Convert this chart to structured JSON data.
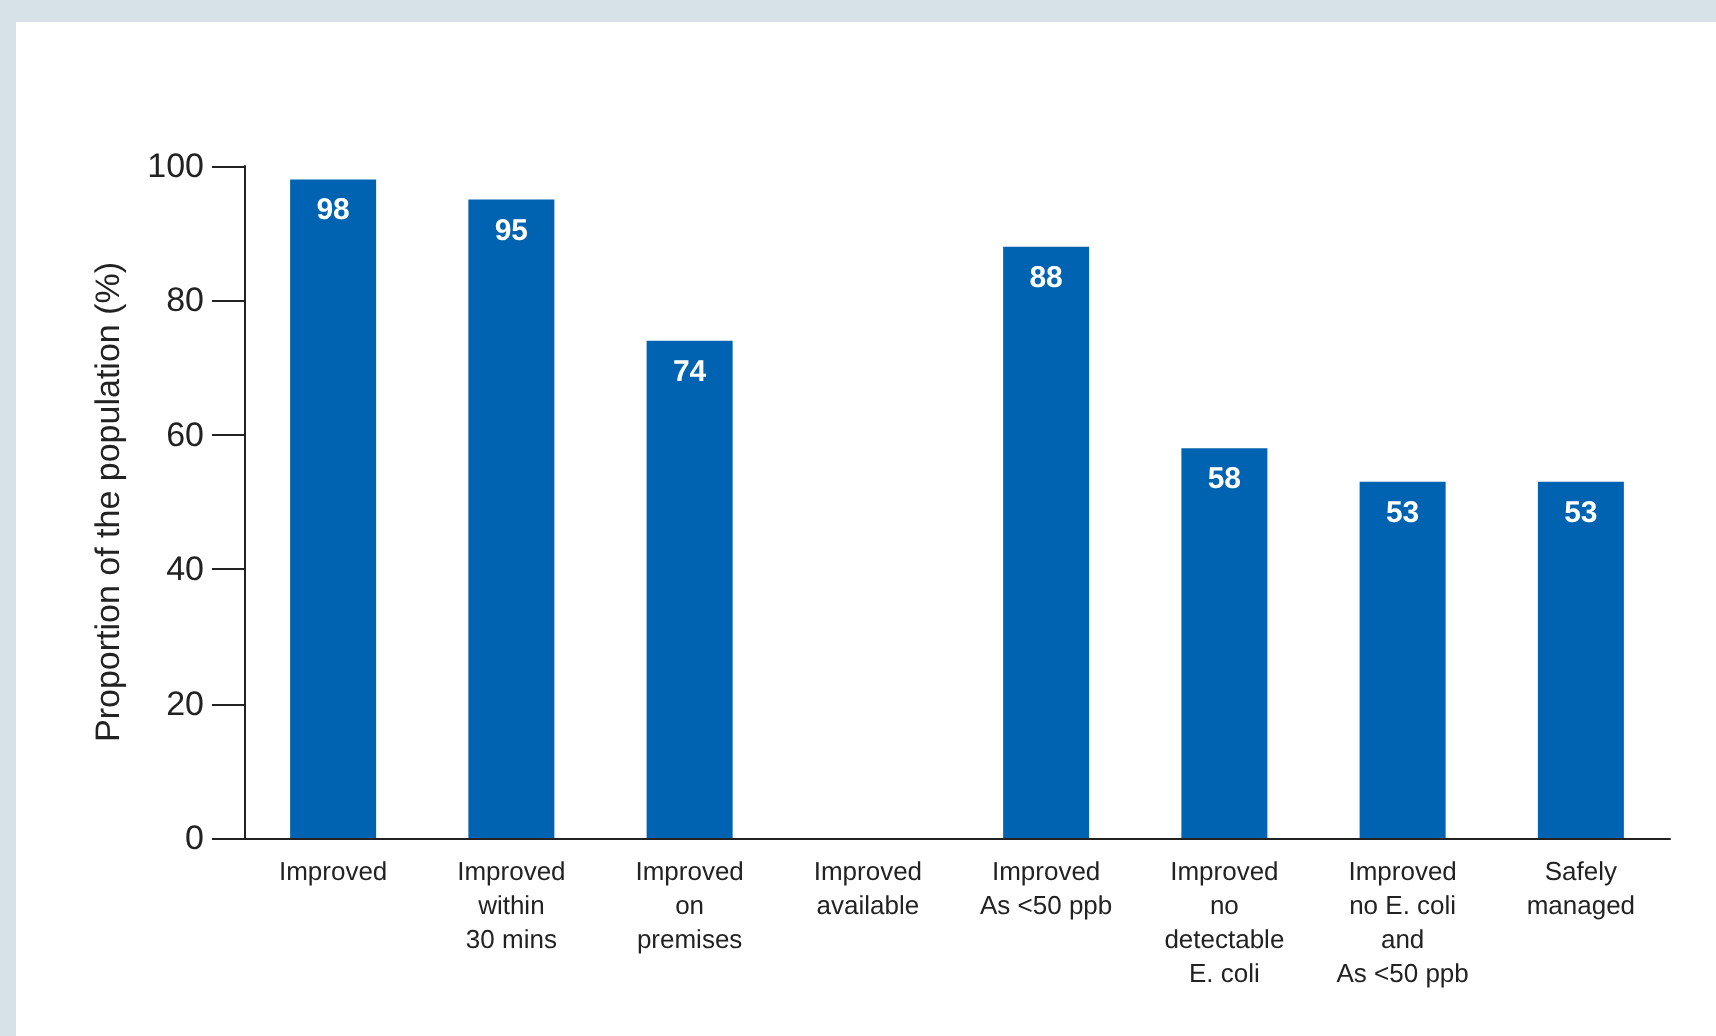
{
  "chart_data": {
    "type": "bar",
    "ylabel": "Proportion of the population (%)",
    "categories": [
      "Improved",
      "Improved\nwithin\n30 mins",
      "Improved\non\npremises",
      "Improved\navailable",
      "Improved\nAs <50 ppb",
      "Improved\nno\ndetectable\nE. coli",
      "Improved\nno E. coli\nand\nAs <50 ppb",
      "Safely\nmanaged"
    ],
    "values": [
      98,
      95,
      74,
      null,
      88,
      58,
      53,
      53
    ],
    "color": "#0063b1",
    "ylim": [
      0,
      100
    ],
    "yticks": [
      0,
      20,
      40,
      60,
      80,
      100
    ],
    "grid": false,
    "data_labels": true
  }
}
